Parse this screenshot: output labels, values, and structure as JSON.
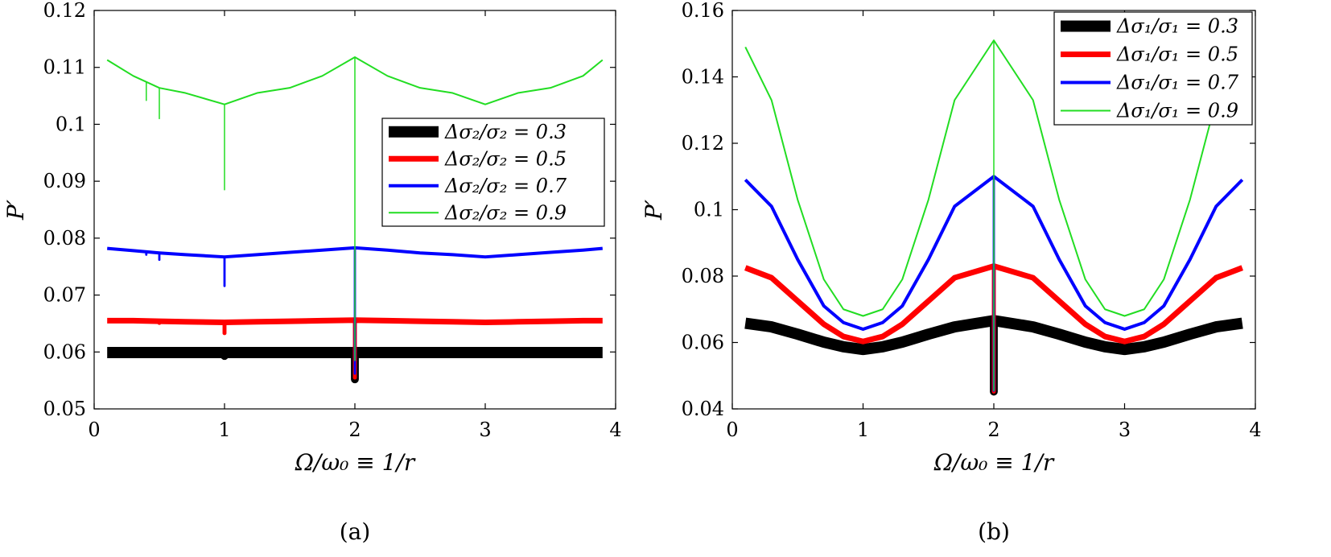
{
  "chart_data": [
    {
      "type": "line",
      "panel_label": "(a)",
      "xlabel": "Ω/ω₀ ≡ 1/r",
      "ylabel": "P′",
      "xlim": [
        0,
        4
      ],
      "ylim": [
        0.05,
        0.12
      ],
      "xticks": [
        0,
        1,
        2,
        3,
        4
      ],
      "yticks": [
        0.05,
        0.06,
        0.07,
        0.08,
        0.09,
        0.1,
        0.11,
        0.12
      ],
      "xtick_labels": [
        "0",
        "1",
        "2",
        "3",
        "4"
      ],
      "ytick_labels": [
        "0.05",
        "0.06",
        "0.07",
        "0.08",
        "0.09",
        "0.1",
        "0.11",
        "0.12"
      ],
      "grid": false,
      "legend_position": "center-right",
      "x": [
        0.1,
        0.3,
        0.5,
        0.7,
        1.0,
        1.25,
        1.5,
        1.75,
        2.0,
        2.25,
        2.5,
        2.75,
        3.0,
        3.25,
        3.5,
        3.75,
        3.9
      ],
      "series": [
        {
          "name": "Δσ₂/σ₂ = 0.3",
          "color": "#000000",
          "values": [
            0.0599,
            0.0599,
            0.0599,
            0.0599,
            0.0599,
            0.0599,
            0.0599,
            0.0599,
            0.0599,
            0.0599,
            0.0599,
            0.0599,
            0.0599,
            0.0599,
            0.0599,
            0.0599,
            0.0599
          ],
          "dips": [
            {
              "x": 2.0,
              "to": 0.0552
            },
            {
              "x": 1.0,
              "to": 0.0593
            }
          ]
        },
        {
          "name": "Δσ₂/σ₂ = 0.5",
          "color": "#ff0000",
          "values": [
            0.0655,
            0.0655,
            0.0654,
            0.0653,
            0.0652,
            0.0653,
            0.0654,
            0.0655,
            0.0656,
            0.0655,
            0.0654,
            0.0653,
            0.0652,
            0.0653,
            0.0654,
            0.0655,
            0.0655
          ],
          "dips": [
            {
              "x": 2.0,
              "to": 0.0555
            },
            {
              "x": 1.0,
              "to": 0.0633
            },
            {
              "x": 0.5,
              "to": 0.0651
            }
          ]
        },
        {
          "name": "Δσ₂/σ₂ = 0.7",
          "color": "#0000ff",
          "values": [
            0.0782,
            0.0778,
            0.0774,
            0.0771,
            0.0767,
            0.0771,
            0.0775,
            0.0779,
            0.0783,
            0.0779,
            0.0774,
            0.0771,
            0.0767,
            0.0771,
            0.0775,
            0.0779,
            0.0782
          ],
          "dips": [
            {
              "x": 2.0,
              "to": 0.0562
            },
            {
              "x": 1.0,
              "to": 0.0716
            },
            {
              "x": 0.5,
              "to": 0.0762
            },
            {
              "x": 0.4,
              "to": 0.0771
            }
          ]
        },
        {
          "name": "Δσ₂/σ₂ = 0.9",
          "color": "#22dd22",
          "values": [
            0.1113,
            0.1085,
            0.1064,
            0.1055,
            0.1035,
            0.1055,
            0.1064,
            0.1085,
            0.1118,
            0.1085,
            0.1064,
            0.1055,
            0.1035,
            0.1055,
            0.1064,
            0.1085,
            0.1113
          ],
          "dips": [
            {
              "x": 2.0,
              "to": 0.0585
            },
            {
              "x": 1.0,
              "to": 0.0885
            },
            {
              "x": 0.5,
              "to": 0.101
            },
            {
              "x": 0.4,
              "to": 0.1042
            }
          ]
        }
      ]
    },
    {
      "type": "line",
      "panel_label": "(b)",
      "xlabel": "Ω/ω₀ ≡ 1/r",
      "ylabel": "P′",
      "xlim": [
        0,
        4
      ],
      "ylim": [
        0.04,
        0.16
      ],
      "xticks": [
        0,
        1,
        2,
        3,
        4
      ],
      "yticks": [
        0.04,
        0.06,
        0.08,
        0.1,
        0.12,
        0.14,
        0.16
      ],
      "xtick_labels": [
        "0",
        "1",
        "2",
        "3",
        "4"
      ],
      "ytick_labels": [
        "0.04",
        "0.06",
        "0.08",
        "0.1",
        "0.12",
        "0.14",
        "0.16"
      ],
      "grid": false,
      "legend_position": "top-right",
      "x": [
        0.1,
        0.3,
        0.5,
        0.7,
        0.85,
        1.0,
        1.15,
        1.3,
        1.5,
        1.7,
        2.0,
        2.3,
        2.5,
        2.7,
        2.85,
        3.0,
        3.15,
        3.3,
        3.5,
        3.7,
        3.9
      ],
      "series": [
        {
          "name": "Δσ₁/σ₁ = 0.3",
          "color": "#000000",
          "values": [
            0.0658,
            0.0647,
            0.0625,
            0.0601,
            0.0587,
            0.0579,
            0.0587,
            0.0601,
            0.0625,
            0.0647,
            0.0666,
            0.0647,
            0.0625,
            0.0601,
            0.0587,
            0.0579,
            0.0587,
            0.0601,
            0.0625,
            0.0647,
            0.0658
          ],
          "dips": [
            {
              "x": 2.0,
              "to": 0.0452
            }
          ]
        },
        {
          "name": "Δσ₁/σ₁ = 0.5",
          "color": "#ff0000",
          "values": [
            0.0825,
            0.0795,
            0.0725,
            0.0655,
            0.0618,
            0.0603,
            0.0618,
            0.0655,
            0.0725,
            0.0795,
            0.083,
            0.0795,
            0.0725,
            0.0655,
            0.0618,
            0.0603,
            0.0618,
            0.0655,
            0.0725,
            0.0795,
            0.0825
          ],
          "dips": [
            {
              "x": 2.0,
              "to": 0.0452
            }
          ]
        },
        {
          "name": "Δσ₁/σ₁ = 0.7",
          "color": "#0000ff",
          "values": [
            0.109,
            0.101,
            0.085,
            0.071,
            0.066,
            0.064,
            0.066,
            0.071,
            0.085,
            0.101,
            0.11,
            0.101,
            0.085,
            0.071,
            0.066,
            0.064,
            0.066,
            0.071,
            0.085,
            0.101,
            0.109
          ],
          "dips": [
            {
              "x": 2.0,
              "to": 0.0455
            }
          ]
        },
        {
          "name": "Δσ₁/σ₁ = 0.9",
          "color": "#22dd22",
          "values": [
            0.149,
            0.133,
            0.103,
            0.079,
            0.07,
            0.068,
            0.07,
            0.079,
            0.103,
            0.133,
            0.151,
            0.133,
            0.103,
            0.079,
            0.07,
            0.068,
            0.07,
            0.079,
            0.103,
            0.133,
            0.149
          ],
          "dips": [
            {
              "x": 2.0,
              "to": 0.0455
            }
          ]
        }
      ]
    }
  ]
}
